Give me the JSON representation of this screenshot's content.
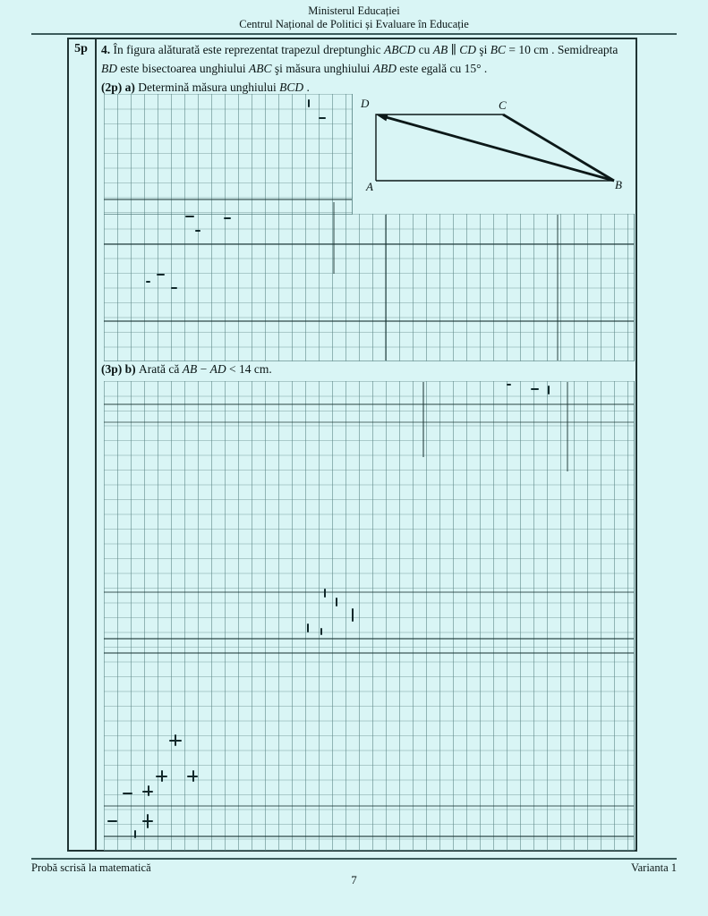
{
  "header": {
    "line1": "Ministerul Educației",
    "line2": "Centrul Național de Politici și Evaluare în Educație"
  },
  "problem": {
    "points": "5p",
    "line1": [
      {
        "t": "4. ",
        "b": true
      },
      {
        "t": "În figura alăturată este reprezentat trapezul dreptunghic "
      },
      {
        "t": "ABCD",
        "i": true
      },
      {
        "t": " cu "
      },
      {
        "t": "AB",
        "i": true
      },
      {
        "t": " ∥ "
      },
      {
        "t": "CD",
        "i": true
      },
      {
        "t": " şi "
      },
      {
        "t": "BC",
        "i": true
      },
      {
        "t": " = 10 cm . Semidreapta"
      }
    ],
    "line2": [
      {
        "t": "BD",
        "i": true
      },
      {
        "t": " este bisectoarea unghiului "
      },
      {
        "t": "ABC",
        "i": true
      },
      {
        "t": " şi măsura unghiului "
      },
      {
        "t": "ABD",
        "i": true
      },
      {
        "t": " este egală cu 15° ."
      }
    ],
    "line3": [
      {
        "t": "(2p) a) ",
        "b": true
      },
      {
        "t": "Determină măsura unghiului "
      },
      {
        "t": "BCD",
        "i": true
      },
      {
        "t": " ."
      }
    ],
    "part_b": [
      {
        "t": "(3p) b) ",
        "b": true
      },
      {
        "t": "Arată că "
      },
      {
        "t": "AB",
        "i": true
      },
      {
        "t": " − "
      },
      {
        "t": "AD",
        "i": true
      },
      {
        "t": " < 14 cm."
      }
    ]
  },
  "figure": {
    "description": "right trapezoid ABCD with ray BD drawn to an arrowhead at D",
    "labels": {
      "A": "A",
      "B": "B",
      "C": "C",
      "D": "D"
    }
  },
  "footer": {
    "left": "Probă scrisă la matematică",
    "right": "Varianta 1",
    "page": "7"
  },
  "colors": {
    "page_background": "#d9f5f5",
    "grid_line": "#6f9b9b",
    "box_border": "#203434",
    "text": "#0a1515"
  }
}
